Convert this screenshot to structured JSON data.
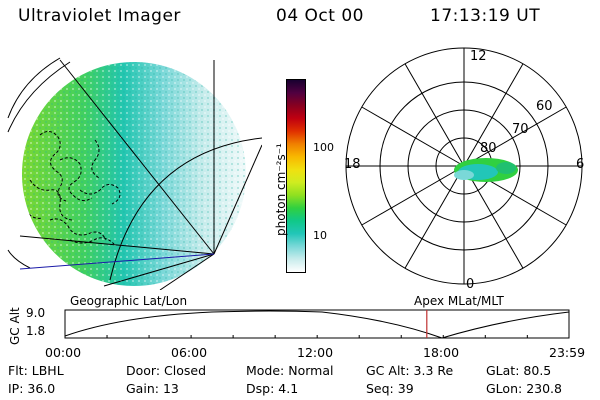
{
  "header": {
    "title": "Ultraviolet Imager",
    "date": "04 Oct 00",
    "time": "17:13:19 UT"
  },
  "colorbar": {
    "unit_label": "photon cm⁻²s⁻¹",
    "ticks": [
      {
        "value": 100,
        "label": "100"
      },
      {
        "value": 10,
        "label": "10"
      }
    ],
    "colors": [
      "#ffffff",
      "#c8ecec",
      "#7ad8d8",
      "#22c6b8",
      "#10c888",
      "#30d040",
      "#90e020",
      "#d0ec20",
      "#f0e010",
      "#f8b800",
      "#f08000",
      "#e03000",
      "#c00010",
      "#880020",
      "#500040",
      "#180030"
    ]
  },
  "polar_plot": {
    "hour_labels": {
      "top": "12",
      "left": "18",
      "right": "6",
      "bottom": "0"
    },
    "lat_labels": [
      "60",
      "70",
      "80"
    ]
  },
  "timeline": {
    "y_axis_label": "GC Alt",
    "y_ticks": [
      "9.0",
      "1.8"
    ],
    "left_caption": "Geographic Lat/Lon",
    "right_caption": "Apex MLat/MLT",
    "x_ticks": [
      "00:00",
      "06:00",
      "12:00",
      "18:00",
      "23:59"
    ],
    "marker_time": "17:13"
  },
  "footer": {
    "flt_label": "Flt:",
    "flt_value": "LBHL",
    "ip_label": "IP:",
    "ip_value": "36.0",
    "door_label": "Door:",
    "door_value": "Closed",
    "gain_label": "Gain:",
    "gain_value": "13",
    "mode_label": "Mode:",
    "mode_value": "Normal",
    "dsp_label": "Dsp:",
    "dsp_value": "4.1",
    "gcalt_label": "GC Alt:",
    "gcalt_value": "3.3 Re",
    "seq_label": "Seq:",
    "seq_value": "39",
    "glat_label": "GLat:",
    "glat_value": "80.5",
    "glon_label": "GLon:",
    "glon_value": "230.8"
  },
  "colors": {
    "line": "#000000",
    "track": "#1a1aa8",
    "marker": "#c03030",
    "emission_green": "#30d040",
    "emission_cyan": "#22c6b8"
  }
}
